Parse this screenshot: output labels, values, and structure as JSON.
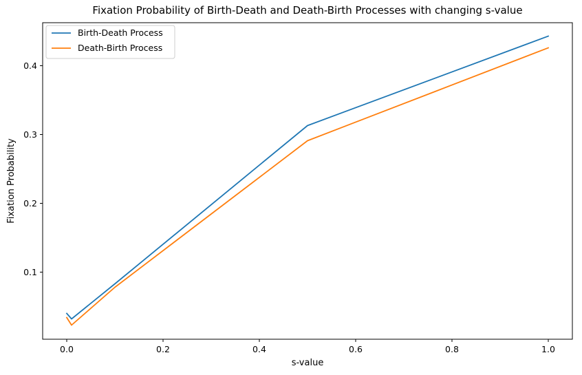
{
  "chart_data": {
    "type": "line",
    "title": "Fixation Probability of Birth-Death and Death-Birth Processes with changing s-value",
    "xlabel": "s-value",
    "ylabel": "Fixation Probability",
    "xlim": [
      -0.05,
      1.05
    ],
    "ylim": [
      0.0025,
      0.4625
    ],
    "xticks": [
      0.0,
      0.2,
      0.4,
      0.6,
      0.8,
      1.0
    ],
    "xtick_labels": [
      "0.0",
      "0.2",
      "0.4",
      "0.6",
      "0.8",
      "1.0"
    ],
    "yticks": [
      0.1,
      0.2,
      0.3,
      0.4
    ],
    "ytick_labels": [
      "0.1",
      "0.2",
      "0.3",
      "0.4"
    ],
    "grid": false,
    "legend_position": "top-left",
    "series": [
      {
        "name": "Birth-Death Process",
        "color": "#1f77b4",
        "x": [
          0.0,
          0.01,
          0.1,
          0.5,
          1.0
        ],
        "y": [
          0.04,
          0.032,
          0.083,
          0.313,
          0.443
        ]
      },
      {
        "name": "Death-Birth Process",
        "color": "#ff7f0e",
        "x": [
          0.0,
          0.01,
          0.1,
          0.5,
          1.0
        ],
        "y": [
          0.034,
          0.023,
          0.078,
          0.291,
          0.426
        ]
      }
    ]
  }
}
